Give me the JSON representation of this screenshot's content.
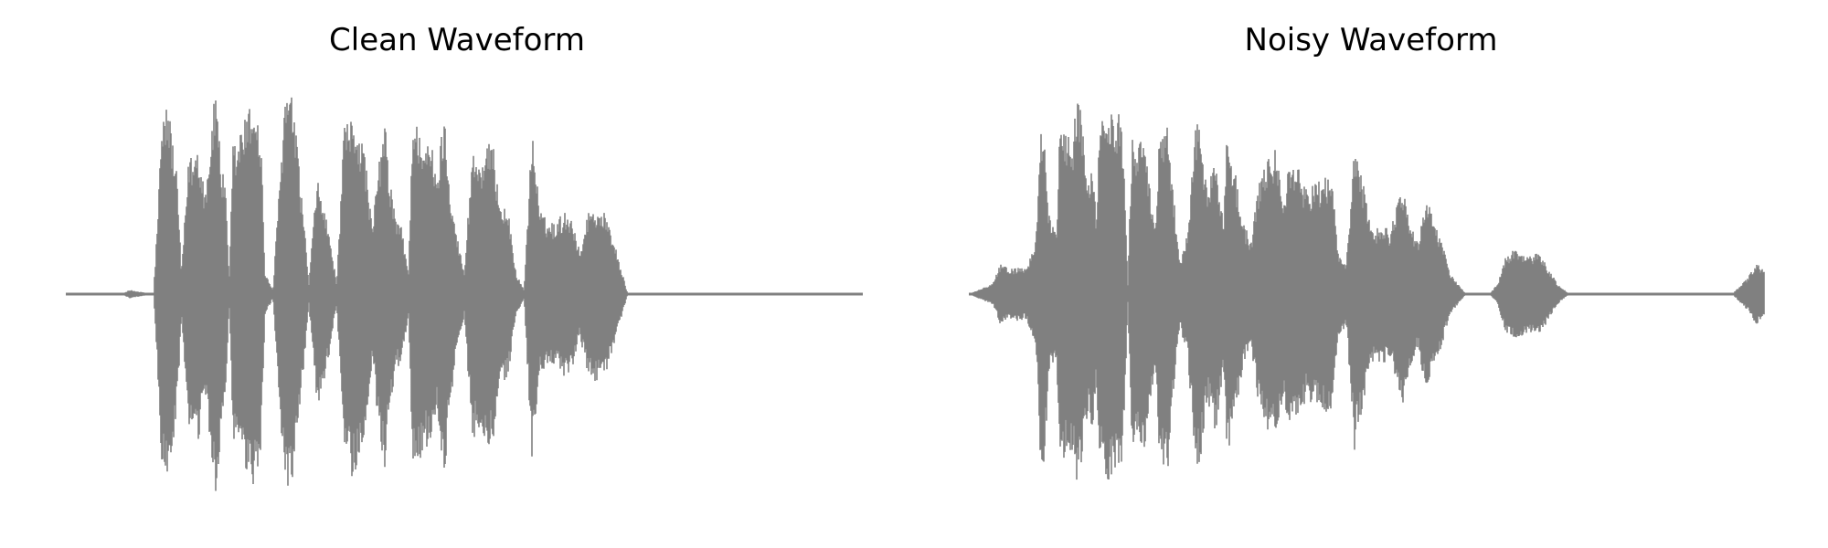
{
  "chart_data": [
    {
      "type": "line",
      "title": "Clean Waveform",
      "color": "#808080",
      "axes_visible": false,
      "grid": false,
      "ylim": [
        -1,
        1
      ],
      "envelope": {
        "x": [
          0.0,
          0.07,
          0.08,
          0.11,
          0.115,
          0.12,
          0.125,
          0.13,
          0.14,
          0.145,
          0.155,
          0.16,
          0.165,
          0.175,
          0.185,
          0.19,
          0.195,
          0.2,
          0.205,
          0.21,
          0.215,
          0.22,
          0.225,
          0.235,
          0.24,
          0.245,
          0.25,
          0.26,
          0.27,
          0.275,
          0.285,
          0.29,
          0.3,
          0.305,
          0.315,
          0.32,
          0.33,
          0.34,
          0.35,
          0.355,
          0.36,
          0.375,
          0.385,
          0.39,
          0.4,
          0.405,
          0.415,
          0.42,
          0.43,
          0.435,
          0.445,
          0.45,
          0.46,
          0.465,
          0.475,
          0.48,
          0.49,
          0.5,
          0.51,
          0.52,
          0.535,
          0.545,
          0.555,
          0.565,
          0.575,
          0.585,
          0.595,
          0.605,
          0.615,
          0.625,
          0.635,
          0.645,
          0.655,
          0.665,
          0.675,
          0.685,
          0.695,
          0.705,
          0.715,
          0.725,
          1.0
        ],
        "amplitude": [
          0.0,
          0.0,
          0.02,
          0.0,
          0.35,
          0.8,
          0.92,
          0.88,
          0.55,
          0.1,
          0.7,
          0.65,
          0.75,
          0.5,
          0.9,
          1.0,
          0.6,
          0.55,
          0.05,
          0.75,
          0.7,
          0.82,
          0.85,
          0.95,
          0.88,
          0.75,
          0.1,
          0.02,
          0.65,
          0.98,
          0.95,
          0.72,
          0.3,
          0.05,
          0.55,
          0.5,
          0.3,
          0.05,
          0.85,
          0.8,
          0.9,
          0.7,
          0.3,
          0.55,
          0.85,
          0.6,
          0.35,
          0.35,
          0.1,
          0.85,
          0.8,
          0.75,
          0.7,
          0.55,
          0.9,
          0.6,
          0.3,
          0.1,
          0.7,
          0.65,
          0.75,
          0.45,
          0.4,
          0.1,
          0.02,
          0.8,
          0.4,
          0.35,
          0.35,
          0.4,
          0.38,
          0.2,
          0.4,
          0.42,
          0.4,
          0.3,
          0.15,
          0.0,
          0.0,
          0.0,
          0.0
        ]
      }
    },
    {
      "type": "line",
      "title": "Noisy Waveform",
      "color": "#808080",
      "axes_visible": false,
      "grid": false,
      "ylim": [
        -1,
        1
      ],
      "envelope": {
        "x": [
          0.0,
          0.03,
          0.04,
          0.05,
          0.06,
          0.07,
          0.075,
          0.085,
          0.09,
          0.095,
          0.1,
          0.11,
          0.115,
          0.12,
          0.13,
          0.135,
          0.14,
          0.15,
          0.155,
          0.16,
          0.165,
          0.175,
          0.18,
          0.19,
          0.195,
          0.2,
          0.205,
          0.21,
          0.22,
          0.225,
          0.235,
          0.24,
          0.25,
          0.255,
          0.265,
          0.275,
          0.285,
          0.29,
          0.3,
          0.31,
          0.32,
          0.325,
          0.335,
          0.345,
          0.355,
          0.365,
          0.375,
          0.385,
          0.395,
          0.405,
          0.415,
          0.425,
          0.435,
          0.445,
          0.455,
          0.465,
          0.475,
          0.485,
          0.5,
          0.51,
          0.52,
          0.53,
          0.545,
          0.555,
          0.565,
          0.575,
          0.585,
          0.595,
          0.605,
          0.615,
          0.625,
          0.635,
          0.645,
          0.655,
          0.665,
          0.675,
          0.685,
          0.695,
          0.705,
          0.715,
          0.725,
          0.74,
          0.755,
          0.765,
          0.78,
          0.8,
          0.815,
          0.825,
          0.84,
          0.85,
          0.86,
          0.875,
          0.885,
          0.9,
          0.92,
          0.96,
          0.98,
          0.99,
          1.0
        ],
        "amplitude": [
          0.0,
          0.05,
          0.15,
          0.12,
          0.13,
          0.12,
          0.15,
          0.3,
          0.8,
          0.86,
          0.4,
          0.3,
          0.85,
          0.8,
          0.75,
          0.95,
          0.9,
          0.55,
          0.7,
          0.4,
          0.8,
          0.95,
          0.88,
          0.9,
          0.7,
          0.05,
          0.75,
          0.72,
          0.8,
          0.6,
          0.35,
          0.8,
          0.88,
          0.6,
          0.15,
          0.3,
          0.8,
          0.85,
          0.5,
          0.7,
          0.35,
          0.8,
          0.6,
          0.35,
          0.25,
          0.55,
          0.65,
          0.7,
          0.5,
          0.65,
          0.6,
          0.5,
          0.55,
          0.55,
          0.6,
          0.2,
          0.15,
          0.75,
          0.45,
          0.3,
          0.35,
          0.3,
          0.55,
          0.35,
          0.25,
          0.5,
          0.35,
          0.25,
          0.1,
          0.05,
          0.0,
          0.0,
          0.0,
          0.0,
          0.05,
          0.18,
          0.22,
          0.2,
          0.18,
          0.2,
          0.15,
          0.05,
          0.0,
          0.0,
          0.0,
          0.0,
          0.0,
          0.0,
          0.0,
          0.0,
          0.0,
          0.0,
          0.0,
          0.0,
          0.0,
          0.0,
          0.08,
          0.15,
          0.12
        ]
      }
    }
  ]
}
